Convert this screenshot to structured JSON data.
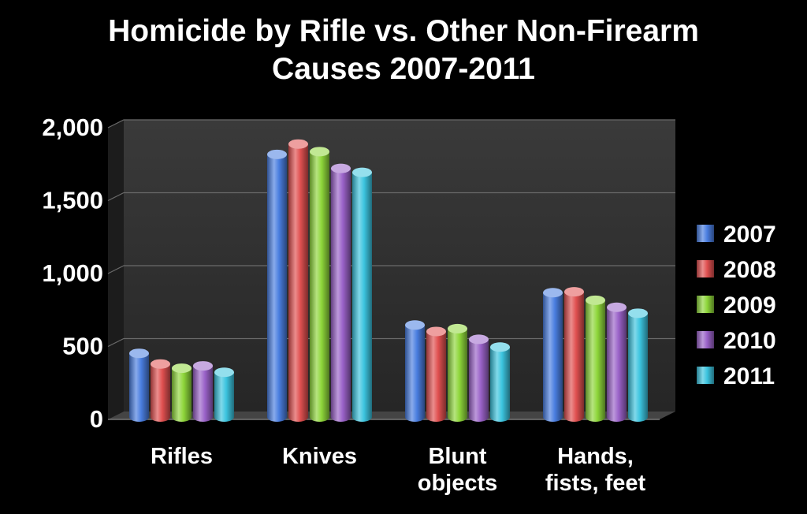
{
  "chart_data": {
    "type": "bar",
    "title_lines": [
      "Homicide by Rifle vs. Other Non-Firearm",
      "Causes 2007-2011"
    ],
    "categories": [
      [
        "Rifles"
      ],
      [
        "Knives"
      ],
      [
        "Blunt",
        "objects"
      ],
      [
        "Hands,",
        "fists, feet"
      ]
    ],
    "series": [
      {
        "name": "2007",
        "color": "#4a7ee0",
        "values": [
          453,
          1817,
          647,
          869
        ]
      },
      {
        "name": "2008",
        "color": "#e05050",
        "values": [
          380,
          1888,
          603,
          875
        ]
      },
      {
        "name": "2009",
        "color": "#8ed63a",
        "values": [
          351,
          1836,
          622,
          817
        ]
      },
      {
        "name": "2010",
        "color": "#9a62c8",
        "values": [
          367,
          1721,
          549,
          769
        ]
      },
      {
        "name": "2011",
        "color": "#3cc4df",
        "values": [
          323,
          1694,
          496,
          728
        ]
      }
    ],
    "yticks": [
      "0",
      "500",
      "1,000",
      "1,500",
      "2,000"
    ],
    "ylim": [
      0,
      2000
    ],
    "grid": true,
    "legend": "right"
  }
}
